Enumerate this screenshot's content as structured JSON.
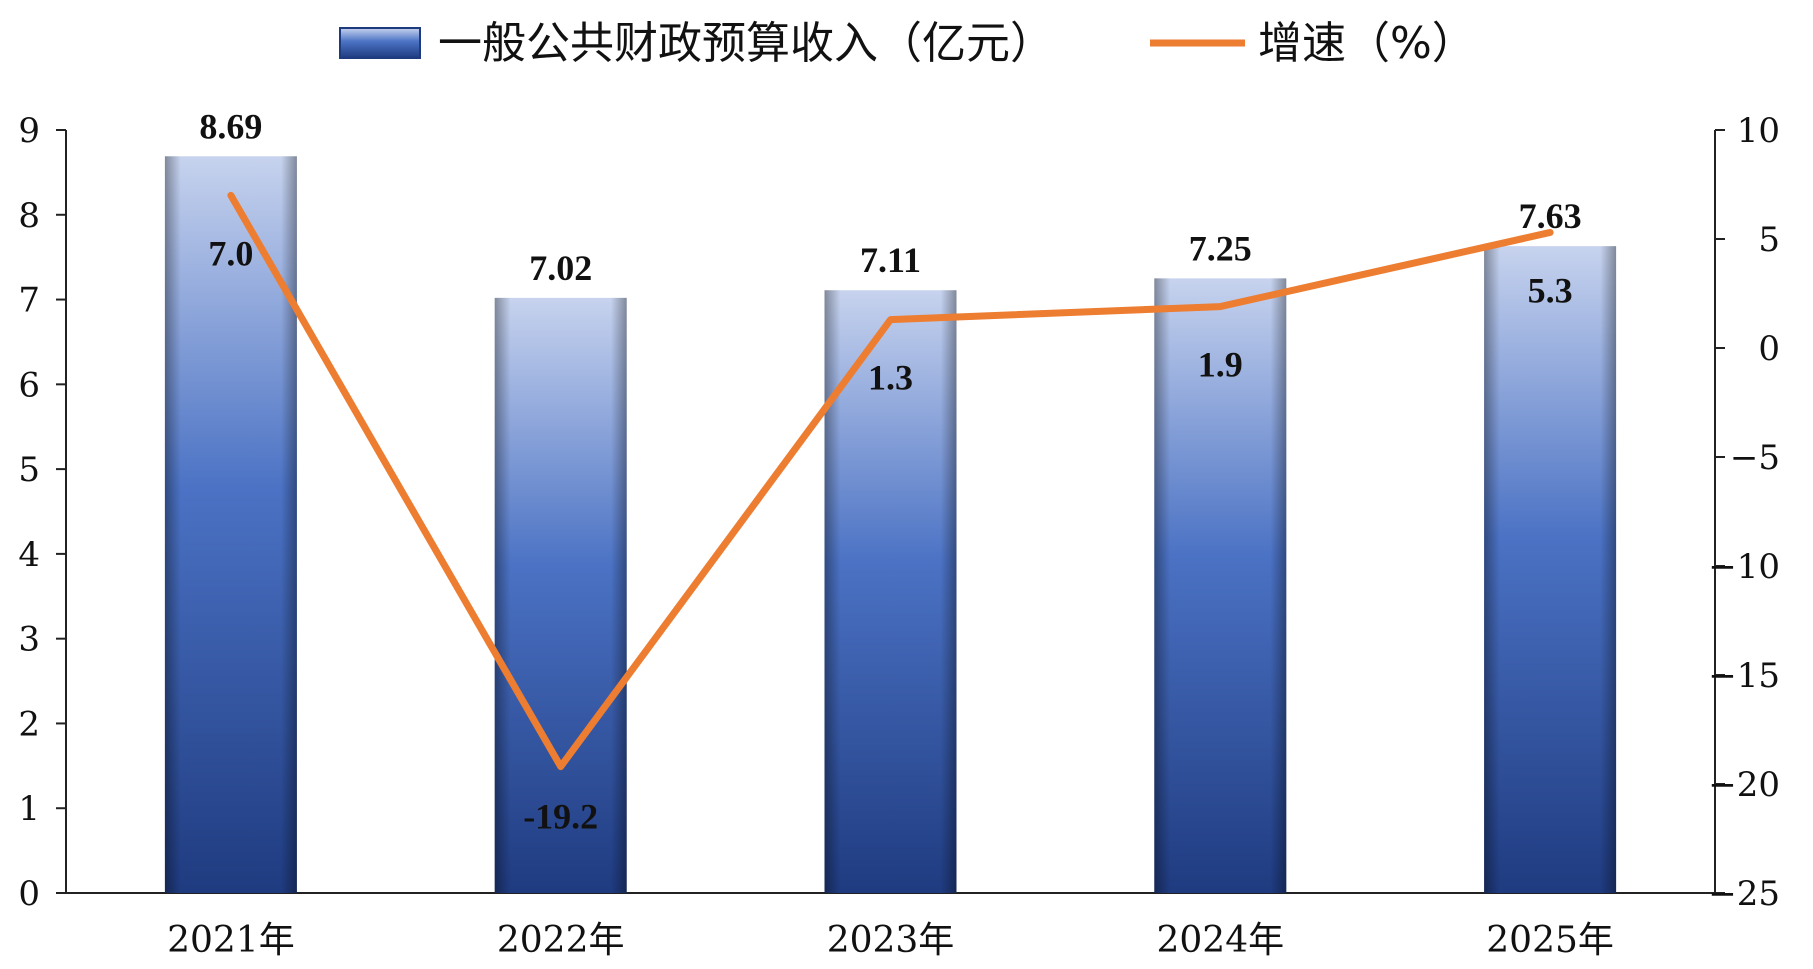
{
  "chart_data": {
    "type": "bar",
    "categories": [
      "2021年",
      "2022年",
      "2023年",
      "2024年",
      "2025年"
    ],
    "series": [
      {
        "name": "一般公共财政预算收入（亿元）",
        "type": "bar",
        "axis": "left",
        "values": [
          8.69,
          7.02,
          7.11,
          7.25,
          7.63
        ],
        "labels": [
          "8.69",
          "7.02",
          "7.11",
          "7.25",
          "7.63"
        ]
      },
      {
        "name": "增速（%）",
        "type": "line",
        "axis": "right",
        "values": [
          7.0,
          -19.2,
          1.3,
          1.9,
          5.3
        ],
        "labels": [
          "7.0",
          "-19.2",
          "1.3",
          "1.9",
          "5.3"
        ]
      }
    ],
    "left_axis": {
      "min": 0,
      "max": 9,
      "step": 1,
      "ticks": [
        "0",
        "1",
        "2",
        "3",
        "4",
        "5",
        "6",
        "7",
        "8",
        "9"
      ]
    },
    "right_axis": {
      "min": -25,
      "max": 10,
      "step": 5,
      "ticks": [
        "−25",
        "−20",
        "−15",
        "−10",
        "−5",
        "0",
        "5",
        "10"
      ]
    },
    "grid": false,
    "legend": "top-center",
    "colors": {
      "bar_top": "#c7d3ee",
      "bar_mid": "#4b72c4",
      "bar_bottom": "#1f3b80",
      "line": "#ed7d31"
    }
  }
}
